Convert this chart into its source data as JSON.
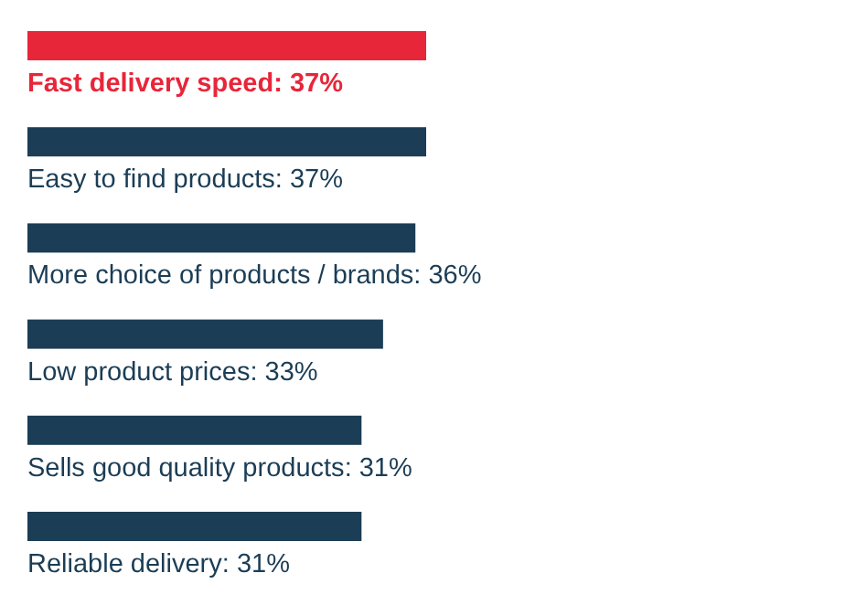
{
  "chart_data": {
    "type": "bar",
    "orientation": "horizontal",
    "categories": [
      "Fast delivery speed",
      "Easy to find products",
      "More choice of products / brands",
      "Low product prices",
      "Sells good quality products",
      "Reliable delivery"
    ],
    "values": [
      37,
      37,
      36,
      33,
      31,
      31
    ],
    "value_labels": [
      ": 37%",
      ": 37%",
      ": 36%",
      ": 33%",
      ": 31%",
      ": 31%"
    ],
    "colors": [
      "#e8263a",
      "#1b3d55",
      "#1b3d55",
      "#1b3d55",
      "#1b3d55",
      "#1b3d55"
    ]
  }
}
